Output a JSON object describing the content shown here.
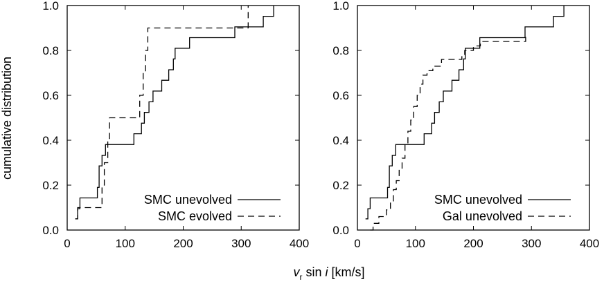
{
  "chart_data": [
    {
      "type": "line",
      "step": true,
      "ylabel": "cumulative distribution",
      "xlim": [
        0,
        400
      ],
      "ylim": [
        0,
        1
      ],
      "xticks": [
        "0",
        "100",
        "200",
        "300",
        "400"
      ],
      "yticks": [
        "0.0",
        "0.2",
        "0.4",
        "0.6",
        "0.8",
        "1.0"
      ],
      "grid": false,
      "legend": "bottom-right",
      "series": [
        {
          "name": "SMC unevolved",
          "style": "solid",
          "x": [
            14,
            18,
            22,
            52,
            55,
            60,
            66,
            100,
            115,
            128,
            133,
            141,
            148,
            163,
            175,
            183,
            186,
            211,
            289,
            338,
            352,
            356
          ],
          "y": [
            0.05,
            0.095,
            0.143,
            0.19,
            0.286,
            0.333,
            0.381,
            0.381,
            0.429,
            0.476,
            0.524,
            0.571,
            0.619,
            0.667,
            0.714,
            0.762,
            0.81,
            0.857,
            0.905,
            0.952,
            0.952,
            1.0
          ]
        },
        {
          "name": "SMC evolved",
          "style": "dashed",
          "x": [
            14,
            18,
            60,
            64,
            70,
            73,
            125,
            131,
            135,
            139,
            308,
            312
          ],
          "y": [
            0.05,
            0.1,
            0.2,
            0.3,
            0.4,
            0.5,
            0.6,
            0.7,
            0.8,
            0.9,
            0.9,
            1.0
          ]
        }
      ]
    },
    {
      "type": "line",
      "step": true,
      "xlim": [
        0,
        400
      ],
      "ylim": [
        0,
        1
      ],
      "xticks": [
        "0",
        "100",
        "200",
        "300",
        "400"
      ],
      "yticks": [
        "0.0",
        "0.2",
        "0.4",
        "0.6",
        "0.8",
        "1.0"
      ],
      "grid": false,
      "legend": "bottom-right",
      "series": [
        {
          "name": "SMC unevolved",
          "style": "solid",
          "x": [
            14,
            18,
            22,
            52,
            55,
            60,
            66,
            100,
            115,
            128,
            133,
            141,
            148,
            163,
            175,
            183,
            186,
            211,
            289,
            338,
            352,
            356
          ],
          "y": [
            0.05,
            0.095,
            0.143,
            0.19,
            0.286,
            0.333,
            0.381,
            0.381,
            0.429,
            0.476,
            0.524,
            0.571,
            0.619,
            0.667,
            0.714,
            0.762,
            0.81,
            0.857,
            0.905,
            0.952,
            0.952,
            1.0
          ]
        },
        {
          "name": "Gal unevolved",
          "style": "dashed",
          "x": [
            22,
            27,
            37,
            50,
            57,
            62,
            67,
            72,
            77,
            82,
            87,
            92,
            97,
            103,
            108,
            113,
            120,
            130,
            145,
            180,
            185,
            200,
            212,
            290
          ],
          "y": [
            0.0,
            0.03,
            0.06,
            0.09,
            0.13,
            0.18,
            0.22,
            0.27,
            0.32,
            0.38,
            0.44,
            0.49,
            0.55,
            0.6,
            0.65,
            0.69,
            0.71,
            0.73,
            0.76,
            0.78,
            0.8,
            0.82,
            0.84,
            0.86
          ]
        }
      ]
    }
  ],
  "shared_xlabel": {
    "var": "v",
    "sub": "r",
    "mid": " sin ",
    "ital": "i",
    "unit": " [km/s]"
  }
}
